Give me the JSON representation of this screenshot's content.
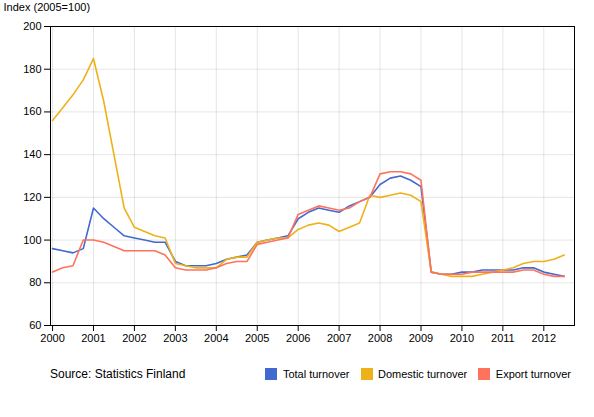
{
  "chart_data": {
    "type": "line",
    "ylabel": "Index (2005=100)",
    "annotations": [
      "Source: Statistics Finland"
    ],
    "x": [
      2000,
      2000.25,
      2000.5,
      2000.75,
      2001,
      2001.25,
      2001.5,
      2001.75,
      2002,
      2002.25,
      2002.5,
      2002.75,
      2003,
      2003.25,
      2003.5,
      2003.75,
      2004,
      2004.25,
      2004.5,
      2004.75,
      2005,
      2005.25,
      2005.5,
      2005.75,
      2006,
      2006.25,
      2006.5,
      2006.75,
      2007,
      2007.25,
      2007.5,
      2007.75,
      2008,
      2008.25,
      2008.5,
      2008.75,
      2009,
      2009.25,
      2009.5,
      2009.75,
      2010,
      2010.25,
      2010.5,
      2010.75,
      2011,
      2011.25,
      2011.5,
      2011.75,
      2012,
      2012.25,
      2012.5
    ],
    "series": [
      {
        "name": "Total turnover",
        "values": [
          96,
          95,
          94,
          96,
          115,
          110,
          106,
          102,
          101,
          100,
          99,
          99,
          90,
          88,
          88,
          88,
          89,
          91,
          92,
          93,
          99,
          100,
          101,
          102,
          110,
          113,
          115,
          114,
          113,
          116,
          118,
          120,
          126,
          129,
          130,
          128,
          125,
          85,
          84,
          84,
          85,
          85,
          86,
          86,
          86,
          86,
          87,
          87,
          85,
          84,
          83
        ]
      },
      {
        "name": "Domestic turnover",
        "values": [
          156,
          162,
          168,
          175,
          185,
          165,
          140,
          115,
          106,
          104,
          102,
          101,
          89,
          88,
          87,
          87,
          87,
          91,
          92,
          92,
          99,
          100,
          101,
          101,
          105,
          107,
          108,
          107,
          104,
          106,
          108,
          121,
          120,
          121,
          122,
          121,
          118,
          85,
          84,
          83,
          83,
          83,
          84,
          85,
          86,
          87,
          89,
          90,
          90,
          91,
          93
        ]
      },
      {
        "name": "Export turnover",
        "values": [
          85,
          87,
          88,
          100,
          100,
          99,
          97,
          95,
          95,
          95,
          95,
          93,
          87,
          86,
          86,
          86,
          87,
          89,
          90,
          90,
          98,
          99,
          100,
          101,
          112,
          114,
          116,
          115,
          114,
          115,
          118,
          120,
          131,
          132,
          132,
          131,
          128,
          85,
          84,
          84,
          84,
          85,
          85,
          85,
          85,
          85,
          86,
          86,
          84,
          83,
          83
        ]
      }
    ],
    "xlim": [
      1999.95,
      2012.75
    ],
    "xticks": [
      2000,
      2001,
      2002,
      2003,
      2004,
      2005,
      2006,
      2007,
      2008,
      2009,
      2010,
      2011,
      2012
    ],
    "ylim": [
      60,
      200
    ],
    "yticks": [
      60,
      80,
      100,
      120,
      140,
      160,
      180,
      200
    ],
    "grid": true,
    "legend": "bottom"
  }
}
